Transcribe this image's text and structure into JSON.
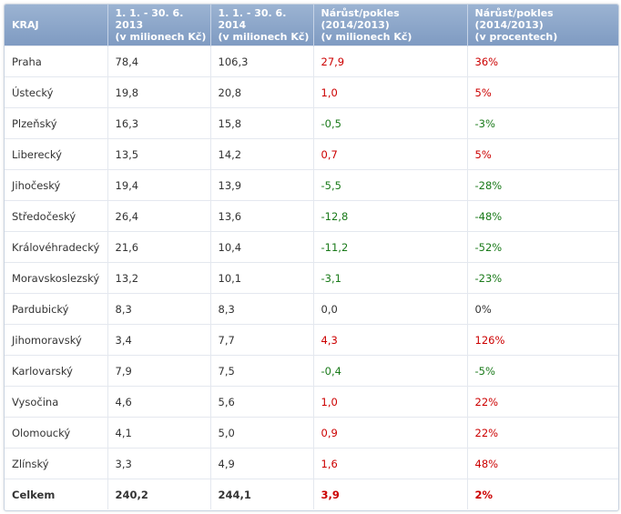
{
  "table": {
    "headers": [
      [
        "KRAJ"
      ],
      [
        "1. 1. - 30. 6. 2013",
        "(v milionech Kč)"
      ],
      [
        "1. 1. - 30. 6. 2014",
        "(v milionech Kč)"
      ],
      [
        "Nárůst/pokles (2014/2013)",
        "(v milionech Kč)"
      ],
      [
        "Nárůst/pokles (2014/2013)",
        "(v procentech)"
      ]
    ],
    "rows": [
      {
        "kraj": "Praha",
        "y2013": "78,4",
        "y2014": "106,3",
        "diff": "27,9",
        "pct": "36%",
        "trend": "pos"
      },
      {
        "kraj": "Ústecký",
        "y2013": "19,8",
        "y2014": "20,8",
        "diff": "1,0",
        "pct": "5%",
        "trend": "pos"
      },
      {
        "kraj": "Plzeňský",
        "y2013": "16,3",
        "y2014": "15,8",
        "diff": "-0,5",
        "pct": "-3%",
        "trend": "neg"
      },
      {
        "kraj": "Liberecký",
        "y2013": "13,5",
        "y2014": "14,2",
        "diff": "0,7",
        "pct": "5%",
        "trend": "pos"
      },
      {
        "kraj": "Jihočeský",
        "y2013": "19,4",
        "y2014": "13,9",
        "diff": "-5,5",
        "pct": "-28%",
        "trend": "neg"
      },
      {
        "kraj": "Středočeský",
        "y2013": "26,4",
        "y2014": "13,6",
        "diff": "-12,8",
        "pct": "-48%",
        "trend": "neg"
      },
      {
        "kraj": "Královéhradecký",
        "y2013": "21,6",
        "y2014": "10,4",
        "diff": "-11,2",
        "pct": "-52%",
        "trend": "neg"
      },
      {
        "kraj": "Moravskoslezský",
        "y2013": "13,2",
        "y2014": "10,1",
        "diff": "-3,1",
        "pct": "-23%",
        "trend": "neg"
      },
      {
        "kraj": "Pardubický",
        "y2013": "8,3",
        "y2014": "8,3",
        "diff": "0,0",
        "pct": "0%",
        "trend": "zero"
      },
      {
        "kraj": "Jihomoravský",
        "y2013": "3,4",
        "y2014": "7,7",
        "diff": "4,3",
        "pct": "126%",
        "trend": "pos"
      },
      {
        "kraj": "Karlovarský",
        "y2013": "7,9",
        "y2014": "7,5",
        "diff": "-0,4",
        "pct": "-5%",
        "trend": "neg"
      },
      {
        "kraj": "Vysočina",
        "y2013": "4,6",
        "y2014": "5,6",
        "diff": "1,0",
        "pct": "22%",
        "trend": "pos"
      },
      {
        "kraj": "Olomoucký",
        "y2013": "4,1",
        "y2014": "5,0",
        "diff": "0,9",
        "pct": "22%",
        "trend": "pos"
      },
      {
        "kraj": "Zlínský",
        "y2013": "3,3",
        "y2014": "4,9",
        "diff": "1,6",
        "pct": "48%",
        "trend": "pos"
      }
    ],
    "total": {
      "kraj": "Celkem",
      "y2013": "240,2",
      "y2014": "244,1",
      "diff": "3,9",
      "pct": "2%",
      "trend": "pos"
    }
  },
  "colors": {
    "increase": "#cc0000",
    "decrease": "#1a7a1a",
    "header": "#8aa5c9"
  }
}
